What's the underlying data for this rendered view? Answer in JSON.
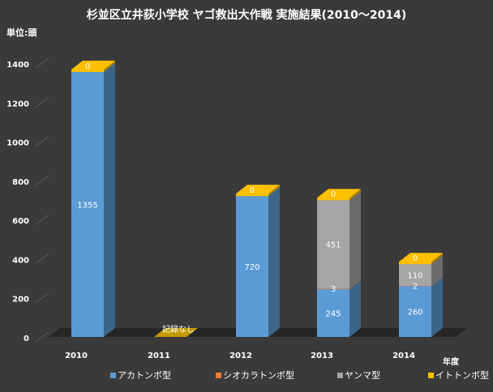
{
  "chart_data": {
    "type": "bar",
    "stacked": true,
    "three_d": true,
    "title": "杉並区立井荻小学校 ヤゴ救出大作戦 実施結果(2010～2014)",
    "unit_label": "単位:頭",
    "xlabel": "年度",
    "ylim": [
      0,
      1400
    ],
    "y_ticks": [
      0,
      200,
      400,
      600,
      800,
      1000,
      1200,
      1400
    ],
    "grid": false,
    "legend_position": "bottom",
    "categories": [
      "2010",
      "2011",
      "2012",
      "2013",
      "2014"
    ],
    "series": [
      {
        "name": "アカトンボ型",
        "color": "#5b9bd5",
        "values": [
          1355,
          0,
          720,
          245,
          260
        ],
        "labels": [
          "1355",
          "",
          "720",
          "245",
          "260"
        ]
      },
      {
        "name": "シオカラトンボ型",
        "color": "#ed7d31",
        "values": [
          0,
          0,
          0,
          3,
          2
        ],
        "labels": [
          "",
          "",
          "",
          "3",
          "2"
        ]
      },
      {
        "name": "ヤンマ型",
        "color": "#a5a5a5",
        "values": [
          0,
          0,
          0,
          451,
          110
        ],
        "labels": [
          "",
          "",
          "",
          "451",
          "110"
        ]
      },
      {
        "name": "イトトンボ型",
        "color": "#ffc000",
        "values": [
          0,
          0,
          0,
          0,
          0
        ],
        "labels": [
          "0",
          "",
          "0",
          "0",
          "0"
        ]
      }
    ],
    "annotations": [
      {
        "category": "2011",
        "text": "記録なし"
      }
    ]
  }
}
